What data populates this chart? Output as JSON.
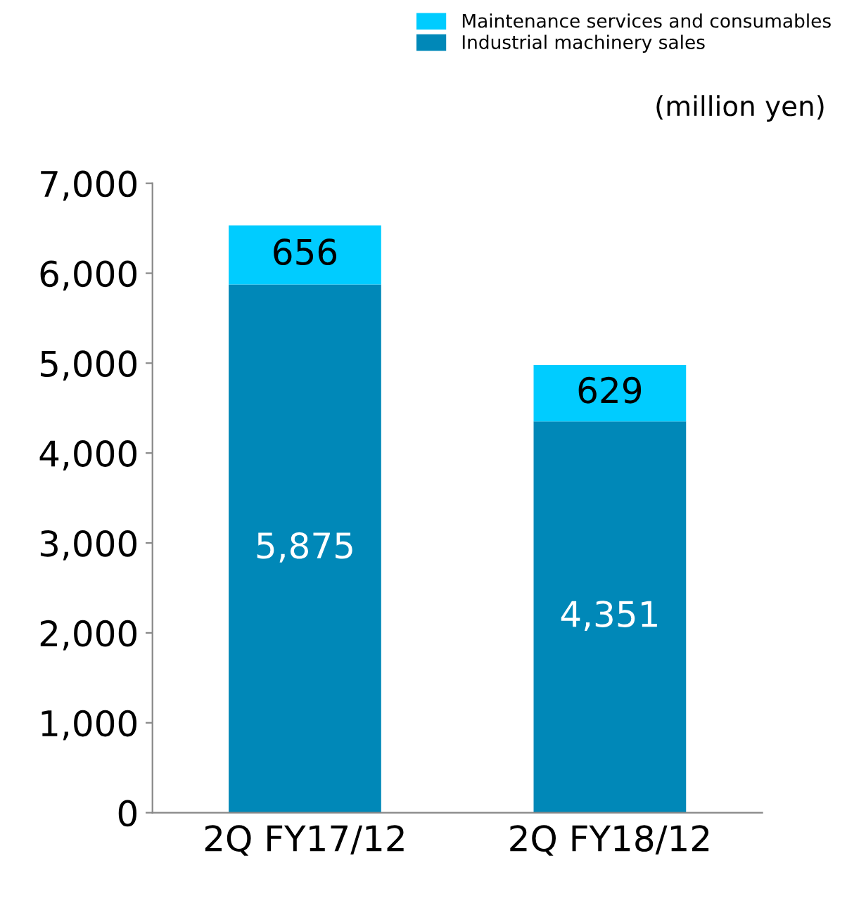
{
  "chart_data": {
    "type": "bar",
    "stacked": true,
    "categories": [
      "2Q FY17/12",
      "2Q FY18/12"
    ],
    "series": [
      {
        "name": "Industrial machinery sales",
        "color": "#0088b8",
        "values": [
          5875,
          4351
        ],
        "value_labels": [
          "5,875",
          "4,351"
        ]
      },
      {
        "name": "Maintenance services and consumables",
        "color": "#00ccff",
        "values": [
          656,
          629
        ],
        "value_labels": [
          "656",
          "629"
        ]
      }
    ],
    "ylim": [
      0,
      7000
    ],
    "yticks": [
      {
        "value": 0,
        "label": "0"
      },
      {
        "value": 1000,
        "label": "1,000"
      },
      {
        "value": 2000,
        "label": "2,000"
      },
      {
        "value": 3000,
        "label": "3,000"
      },
      {
        "value": 4000,
        "label": "4,000"
      },
      {
        "value": 5000,
        "label": "5,000"
      },
      {
        "value": 6000,
        "label": "6,000"
      },
      {
        "value": 7000,
        "label": "7,000"
      }
    ],
    "grid": false,
    "legend": "top right",
    "annotations": [
      "(million yen)"
    ]
  }
}
